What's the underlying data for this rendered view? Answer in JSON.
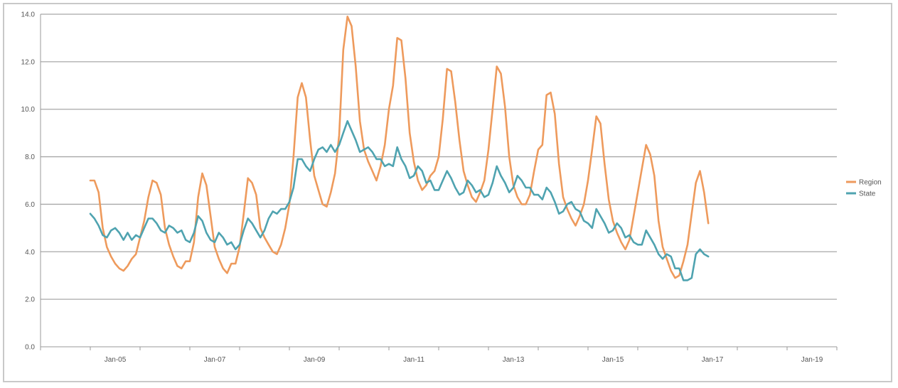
{
  "chart_data": {
    "type": "line",
    "title": "",
    "xlabel": "",
    "ylabel": "",
    "ylim": [
      0,
      14
    ],
    "xlim": [
      "2004-01",
      "2020-01"
    ],
    "y_ticks": [
      "0.0",
      "2.0",
      "4.0",
      "6.0",
      "8.0",
      "10.0",
      "12.0",
      "14.0"
    ],
    "x_ticks": [
      "Jan-05",
      "Jan-07",
      "Jan-09",
      "Jan-11",
      "Jan-13",
      "Jan-15",
      "Jan-17",
      "Jan-19"
    ],
    "grid": "horizontal",
    "legend_position": "right",
    "series": [
      {
        "name": "Region",
        "color": "#ee9a5c",
        "points": [
          [
            "2005-01",
            7.0
          ],
          [
            "2005-02",
            7.0
          ],
          [
            "2005-03",
            6.5
          ],
          [
            "2005-04",
            5.0
          ],
          [
            "2005-05",
            4.2
          ],
          [
            "2005-06",
            3.8
          ],
          [
            "2005-07",
            3.5
          ],
          [
            "2005-08",
            3.3
          ],
          [
            "2005-09",
            3.2
          ],
          [
            "2005-10",
            3.4
          ],
          [
            "2005-11",
            3.7
          ],
          [
            "2005-12",
            3.9
          ],
          [
            "2006-01",
            4.6
          ],
          [
            "2006-02",
            5.3
          ],
          [
            "2006-03",
            6.3
          ],
          [
            "2006-04",
            7.0
          ],
          [
            "2006-05",
            6.9
          ],
          [
            "2006-06",
            6.4
          ],
          [
            "2006-07",
            5.0
          ],
          [
            "2006-08",
            4.3
          ],
          [
            "2006-09",
            3.8
          ],
          [
            "2006-10",
            3.4
          ],
          [
            "2006-11",
            3.3
          ],
          [
            "2006-12",
            3.6
          ],
          [
            "2007-01",
            3.6
          ],
          [
            "2007-02",
            4.4
          ],
          [
            "2007-03",
            6.3
          ],
          [
            "2007-04",
            7.3
          ],
          [
            "2007-05",
            6.8
          ],
          [
            "2007-06",
            5.5
          ],
          [
            "2007-07",
            4.2
          ],
          [
            "2007-08",
            3.7
          ],
          [
            "2007-09",
            3.3
          ],
          [
            "2007-10",
            3.1
          ],
          [
            "2007-11",
            3.5
          ],
          [
            "2007-12",
            3.5
          ],
          [
            "2008-01",
            4.2
          ],
          [
            "2008-02",
            5.6
          ],
          [
            "2008-03",
            7.1
          ],
          [
            "2008-04",
            6.9
          ],
          [
            "2008-05",
            6.4
          ],
          [
            "2008-06",
            5.0
          ],
          [
            "2008-07",
            4.6
          ],
          [
            "2008-08",
            4.3
          ],
          [
            "2008-09",
            4.0
          ],
          [
            "2008-10",
            3.9
          ],
          [
            "2008-11",
            4.3
          ],
          [
            "2008-12",
            5.0
          ],
          [
            "2009-01",
            6.0
          ],
          [
            "2009-02",
            8.0
          ],
          [
            "2009-03",
            10.5
          ],
          [
            "2009-04",
            11.1
          ],
          [
            "2009-05",
            10.5
          ],
          [
            "2009-06",
            8.7
          ],
          [
            "2009-07",
            7.2
          ],
          [
            "2009-08",
            6.6
          ],
          [
            "2009-09",
            6.0
          ],
          [
            "2009-10",
            5.9
          ],
          [
            "2009-11",
            6.5
          ],
          [
            "2009-12",
            7.3
          ],
          [
            "2010-01",
            8.9
          ],
          [
            "2010-02",
            12.5
          ],
          [
            "2010-03",
            13.9
          ],
          [
            "2010-04",
            13.5
          ],
          [
            "2010-05",
            11.8
          ],
          [
            "2010-06",
            9.5
          ],
          [
            "2010-07",
            8.3
          ],
          [
            "2010-08",
            7.8
          ],
          [
            "2010-09",
            7.4
          ],
          [
            "2010-10",
            7.0
          ],
          [
            "2010-11",
            7.6
          ],
          [
            "2010-12",
            8.5
          ],
          [
            "2011-01",
            10.0
          ],
          [
            "2011-02",
            11.0
          ],
          [
            "2011-03",
            13.0
          ],
          [
            "2011-04",
            12.9
          ],
          [
            "2011-05",
            11.3
          ],
          [
            "2011-06",
            9.0
          ],
          [
            "2011-07",
            7.8
          ],
          [
            "2011-08",
            7.0
          ],
          [
            "2011-09",
            6.6
          ],
          [
            "2011-10",
            6.8
          ],
          [
            "2011-11",
            7.2
          ],
          [
            "2011-12",
            7.4
          ],
          [
            "2012-01",
            8.0
          ],
          [
            "2012-02",
            9.6
          ],
          [
            "2012-03",
            11.7
          ],
          [
            "2012-04",
            11.6
          ],
          [
            "2012-05",
            10.3
          ],
          [
            "2012-06",
            8.7
          ],
          [
            "2012-07",
            7.4
          ],
          [
            "2012-08",
            6.8
          ],
          [
            "2012-09",
            6.3
          ],
          [
            "2012-10",
            6.1
          ],
          [
            "2012-11",
            6.5
          ],
          [
            "2012-12",
            7.0
          ],
          [
            "2013-01",
            8.3
          ],
          [
            "2013-02",
            10.0
          ],
          [
            "2013-03",
            11.8
          ],
          [
            "2013-04",
            11.5
          ],
          [
            "2013-05",
            10.1
          ],
          [
            "2013-06",
            8.0
          ],
          [
            "2013-07",
            6.8
          ],
          [
            "2013-08",
            6.3
          ],
          [
            "2013-09",
            6.0
          ],
          [
            "2013-10",
            6.0
          ],
          [
            "2013-11",
            6.4
          ],
          [
            "2013-12",
            7.4
          ],
          [
            "2014-01",
            8.3
          ],
          [
            "2014-02",
            8.5
          ],
          [
            "2014-03",
            10.6
          ],
          [
            "2014-04",
            10.7
          ],
          [
            "2014-05",
            9.8
          ],
          [
            "2014-06",
            7.7
          ],
          [
            "2014-07",
            6.3
          ],
          [
            "2014-08",
            5.8
          ],
          [
            "2014-09",
            5.4
          ],
          [
            "2014-10",
            5.1
          ],
          [
            "2014-11",
            5.5
          ],
          [
            "2014-12",
            6.0
          ],
          [
            "2015-01",
            7.0
          ],
          [
            "2015-02",
            8.3
          ],
          [
            "2015-03",
            9.7
          ],
          [
            "2015-04",
            9.4
          ],
          [
            "2015-05",
            7.7
          ],
          [
            "2015-06",
            6.2
          ],
          [
            "2015-07",
            5.3
          ],
          [
            "2015-08",
            4.8
          ],
          [
            "2015-09",
            4.4
          ],
          [
            "2015-10",
            4.1
          ],
          [
            "2015-11",
            4.5
          ],
          [
            "2015-12",
            5.5
          ],
          [
            "2016-01",
            6.5
          ],
          [
            "2016-02",
            7.5
          ],
          [
            "2016-03",
            8.5
          ],
          [
            "2016-04",
            8.1
          ],
          [
            "2016-05",
            7.2
          ],
          [
            "2016-06",
            5.3
          ],
          [
            "2016-07",
            4.2
          ],
          [
            "2016-08",
            3.7
          ],
          [
            "2016-09",
            3.2
          ],
          [
            "2016-10",
            2.9
          ],
          [
            "2016-11",
            3.0
          ],
          [
            "2016-12",
            3.6
          ],
          [
            "2017-01",
            4.3
          ],
          [
            "2017-02",
            5.6
          ],
          [
            "2017-03",
            6.9
          ],
          [
            "2017-04",
            7.4
          ],
          [
            "2017-05",
            6.5
          ],
          [
            "2017-06",
            5.2
          ]
        ]
      },
      {
        "name": "State",
        "color": "#4fa3b0",
        "points": [
          [
            "2005-01",
            5.6
          ],
          [
            "2005-02",
            5.4
          ],
          [
            "2005-03",
            5.1
          ],
          [
            "2005-04",
            4.7
          ],
          [
            "2005-05",
            4.6
          ],
          [
            "2005-06",
            4.9
          ],
          [
            "2005-07",
            5.0
          ],
          [
            "2005-08",
            4.8
          ],
          [
            "2005-09",
            4.5
          ],
          [
            "2005-10",
            4.8
          ],
          [
            "2005-11",
            4.5
          ],
          [
            "2005-12",
            4.7
          ],
          [
            "2006-01",
            4.6
          ],
          [
            "2006-02",
            5.0
          ],
          [
            "2006-03",
            5.4
          ],
          [
            "2006-04",
            5.4
          ],
          [
            "2006-05",
            5.2
          ],
          [
            "2006-06",
            4.9
          ],
          [
            "2006-07",
            4.8
          ],
          [
            "2006-08",
            5.1
          ],
          [
            "2006-09",
            5.0
          ],
          [
            "2006-10",
            4.8
          ],
          [
            "2006-11",
            4.9
          ],
          [
            "2006-12",
            4.5
          ],
          [
            "2007-01",
            4.4
          ],
          [
            "2007-02",
            4.8
          ],
          [
            "2007-03",
            5.5
          ],
          [
            "2007-04",
            5.3
          ],
          [
            "2007-05",
            4.8
          ],
          [
            "2007-06",
            4.5
          ],
          [
            "2007-07",
            4.4
          ],
          [
            "2007-08",
            4.8
          ],
          [
            "2007-09",
            4.6
          ],
          [
            "2007-10",
            4.3
          ],
          [
            "2007-11",
            4.4
          ],
          [
            "2007-12",
            4.1
          ],
          [
            "2008-01",
            4.3
          ],
          [
            "2008-02",
            4.9
          ],
          [
            "2008-03",
            5.4
          ],
          [
            "2008-04",
            5.2
          ],
          [
            "2008-05",
            4.9
          ],
          [
            "2008-06",
            4.6
          ],
          [
            "2008-07",
            4.9
          ],
          [
            "2008-08",
            5.4
          ],
          [
            "2008-09",
            5.7
          ],
          [
            "2008-10",
            5.6
          ],
          [
            "2008-11",
            5.8
          ],
          [
            "2008-12",
            5.8
          ],
          [
            "2009-01",
            6.1
          ],
          [
            "2009-02",
            6.7
          ],
          [
            "2009-03",
            7.9
          ],
          [
            "2009-04",
            7.9
          ],
          [
            "2009-05",
            7.6
          ],
          [
            "2009-06",
            7.4
          ],
          [
            "2009-07",
            7.9
          ],
          [
            "2009-08",
            8.3
          ],
          [
            "2009-09",
            8.4
          ],
          [
            "2009-10",
            8.2
          ],
          [
            "2009-11",
            8.5
          ],
          [
            "2009-12",
            8.2
          ],
          [
            "2010-01",
            8.5
          ],
          [
            "2010-02",
            9.0
          ],
          [
            "2010-03",
            9.5
          ],
          [
            "2010-04",
            9.1
          ],
          [
            "2010-05",
            8.7
          ],
          [
            "2010-06",
            8.2
          ],
          [
            "2010-07",
            8.3
          ],
          [
            "2010-08",
            8.4
          ],
          [
            "2010-09",
            8.2
          ],
          [
            "2010-10",
            7.9
          ],
          [
            "2010-11",
            7.9
          ],
          [
            "2010-12",
            7.6
          ],
          [
            "2011-01",
            7.7
          ],
          [
            "2011-02",
            7.6
          ],
          [
            "2011-03",
            8.4
          ],
          [
            "2011-04",
            7.9
          ],
          [
            "2011-05",
            7.6
          ],
          [
            "2011-06",
            7.1
          ],
          [
            "2011-07",
            7.2
          ],
          [
            "2011-08",
            7.6
          ],
          [
            "2011-09",
            7.4
          ],
          [
            "2011-10",
            6.9
          ],
          [
            "2011-11",
            7.0
          ],
          [
            "2011-12",
            6.6
          ],
          [
            "2012-01",
            6.6
          ],
          [
            "2012-02",
            7.0
          ],
          [
            "2012-03",
            7.4
          ],
          [
            "2012-04",
            7.1
          ],
          [
            "2012-05",
            6.7
          ],
          [
            "2012-06",
            6.4
          ],
          [
            "2012-07",
            6.5
          ],
          [
            "2012-08",
            7.0
          ],
          [
            "2012-09",
            6.8
          ],
          [
            "2012-10",
            6.5
          ],
          [
            "2012-11",
            6.6
          ],
          [
            "2012-12",
            6.3
          ],
          [
            "2013-01",
            6.4
          ],
          [
            "2013-02",
            6.9
          ],
          [
            "2013-03",
            7.6
          ],
          [
            "2013-04",
            7.2
          ],
          [
            "2013-05",
            6.9
          ],
          [
            "2013-06",
            6.5
          ],
          [
            "2013-07",
            6.7
          ],
          [
            "2013-08",
            7.2
          ],
          [
            "2013-09",
            7.0
          ],
          [
            "2013-10",
            6.7
          ],
          [
            "2013-11",
            6.7
          ],
          [
            "2013-12",
            6.4
          ],
          [
            "2014-01",
            6.4
          ],
          [
            "2014-02",
            6.2
          ],
          [
            "2014-03",
            6.7
          ],
          [
            "2014-04",
            6.5
          ],
          [
            "2014-05",
            6.1
          ],
          [
            "2014-06",
            5.6
          ],
          [
            "2014-07",
            5.7
          ],
          [
            "2014-08",
            6.0
          ],
          [
            "2014-09",
            6.1
          ],
          [
            "2014-10",
            5.8
          ],
          [
            "2014-11",
            5.7
          ],
          [
            "2014-12",
            5.3
          ],
          [
            "2015-01",
            5.2
          ],
          [
            "2015-02",
            5.0
          ],
          [
            "2015-03",
            5.8
          ],
          [
            "2015-04",
            5.5
          ],
          [
            "2015-05",
            5.2
          ],
          [
            "2015-06",
            4.8
          ],
          [
            "2015-07",
            4.9
          ],
          [
            "2015-08",
            5.2
          ],
          [
            "2015-09",
            5.0
          ],
          [
            "2015-10",
            4.6
          ],
          [
            "2015-11",
            4.7
          ],
          [
            "2015-12",
            4.4
          ],
          [
            "2016-01",
            4.3
          ],
          [
            "2016-02",
            4.3
          ],
          [
            "2016-03",
            4.9
          ],
          [
            "2016-04",
            4.6
          ],
          [
            "2016-05",
            4.3
          ],
          [
            "2016-06",
            3.9
          ],
          [
            "2016-07",
            3.7
          ],
          [
            "2016-08",
            3.9
          ],
          [
            "2016-09",
            3.8
          ],
          [
            "2016-10",
            3.3
          ],
          [
            "2016-11",
            3.3
          ],
          [
            "2016-12",
            2.8
          ],
          [
            "2017-01",
            2.8
          ],
          [
            "2017-02",
            2.9
          ],
          [
            "2017-03",
            3.9
          ],
          [
            "2017-04",
            4.1
          ],
          [
            "2017-05",
            3.9
          ],
          [
            "2017-06",
            3.8
          ]
        ]
      }
    ]
  }
}
